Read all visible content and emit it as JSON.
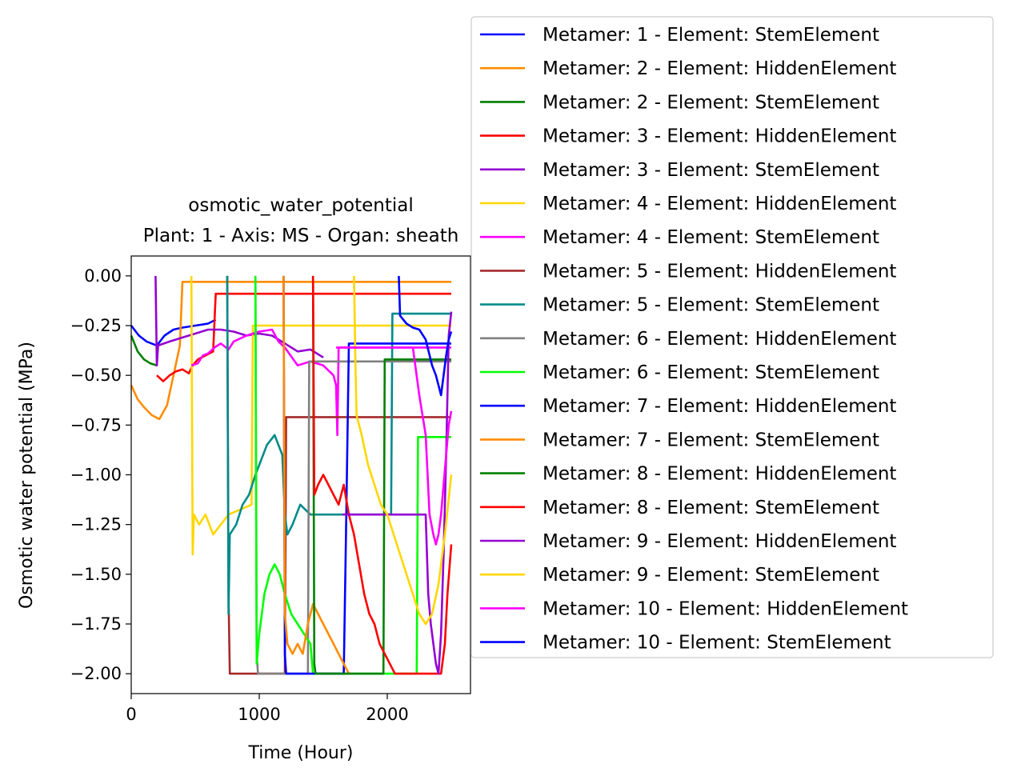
{
  "chart_data": {
    "type": "line",
    "title_line1": "osmotic_water_potential",
    "title_line2": "Plant: 1 - Axis: MS - Organ: sheath",
    "xlabel": "Time (Hour)",
    "ylabel": "Osmotic water potential (MPa)",
    "xlim": [
      0,
      2650
    ],
    "ylim": [
      -2.1,
      0.1
    ],
    "xticks": [
      {
        "value": 0,
        "label": "0"
      },
      {
        "value": 1000,
        "label": "1000"
      },
      {
        "value": 2000,
        "label": "2000"
      }
    ],
    "yticks": [
      {
        "value": 0.0,
        "label": "0.00"
      },
      {
        "value": -0.25,
        "label": "−0.25"
      },
      {
        "value": -0.5,
        "label": "−0.50"
      },
      {
        "value": -0.75,
        "label": "−0.75"
      },
      {
        "value": -1.0,
        "label": "−1.00"
      },
      {
        "value": -1.25,
        "label": "−1.25"
      },
      {
        "value": -1.5,
        "label": "−1.50"
      },
      {
        "value": -1.75,
        "label": "−1.75"
      },
      {
        "value": -2.0,
        "label": "−2.00"
      }
    ],
    "grid": false,
    "legend_position": "outside-right-top",
    "series": [
      {
        "name": "Metamer: 1 - Element: StemElement",
        "color": "#0000ff",
        "x": [
          0,
          60,
          120,
          200,
          260,
          330,
          400,
          500,
          600,
          660
        ],
        "y": [
          -0.25,
          -0.3,
          -0.33,
          -0.35,
          -0.3,
          -0.27,
          -0.26,
          -0.25,
          -0.24,
          -0.22
        ]
      },
      {
        "name": "Metamer: 2 - Element: HiddenElement",
        "color": "#ff8c00",
        "x": [
          0,
          50,
          100,
          160,
          220,
          280,
          330,
          380,
          400,
          2500
        ],
        "y": [
          -0.55,
          -0.62,
          -0.66,
          -0.7,
          -0.72,
          -0.65,
          -0.5,
          -0.35,
          -0.03,
          -0.03
        ]
      },
      {
        "name": "Metamer: 2 - Element: StemElement",
        "color": "#008000",
        "x": [
          0,
          50,
          100,
          150,
          200
        ],
        "y": [
          -0.3,
          -0.38,
          -0.42,
          -0.44,
          -0.45
        ]
      },
      {
        "name": "Metamer: 3 - Element: HiddenElement",
        "color": "#ff0000",
        "x": [
          200,
          250,
          300,
          350,
          400,
          450,
          480,
          520,
          580,
          640,
          660,
          2500
        ],
        "y": [
          -0.5,
          -0.53,
          -0.5,
          -0.48,
          -0.47,
          -0.49,
          -0.45,
          -0.42,
          -0.4,
          -0.38,
          -0.09,
          -0.09
        ]
      },
      {
        "name": "Metamer: 3 - Element: StemElement",
        "color": "#9400d3",
        "x": [
          190,
          200,
          210,
          300,
          400,
          500,
          600,
          700,
          800,
          900,
          1000,
          1100,
          1200,
          1300,
          1400,
          1500
        ],
        "y": [
          0.0,
          -0.45,
          -0.35,
          -0.33,
          -0.31,
          -0.29,
          -0.27,
          -0.27,
          -0.28,
          -0.3,
          -0.29,
          -0.3,
          -0.34,
          -0.38,
          -0.37,
          -0.41
        ]
      },
      {
        "name": "Metamer: 4 - Element: HiddenElement",
        "color": "#ffd700",
        "x": [
          470,
          480,
          490,
          530,
          580,
          640,
          700,
          760,
          940,
          950,
          2500
        ],
        "y": [
          0.0,
          -1.4,
          -1.2,
          -1.25,
          -1.2,
          -1.3,
          -1.25,
          -1.2,
          -1.15,
          -0.25,
          -0.25
        ]
      },
      {
        "name": "Metamer: 4 - Element: StemElement",
        "color": "#ff00ff",
        "x": [
          470,
          520,
          560,
          600,
          650,
          700,
          760,
          800,
          900,
          1000,
          1100,
          1150,
          1200,
          1300,
          1400,
          1500,
          1580,
          1600,
          1610,
          1620,
          2500
        ],
        "y": [
          -0.45,
          -0.44,
          -0.4,
          -0.39,
          -0.36,
          -0.34,
          -0.37,
          -0.33,
          -0.3,
          -0.28,
          -0.27,
          -0.33,
          -0.36,
          -0.45,
          -0.43,
          -0.45,
          -0.5,
          -0.55,
          -0.8,
          -0.36,
          -0.36
        ]
      },
      {
        "name": "Metamer: 5 - Element: HiddenElement",
        "color": "#a52a2a",
        "x": [
          750,
          760,
          770,
          1200,
          1210,
          2500
        ],
        "y": [
          0.0,
          -1.6,
          -2.0,
          -2.0,
          -0.71,
          -0.71
        ]
      },
      {
        "name": "Metamer: 5 - Element: StemElement",
        "color": "#008b8b",
        "x": [
          750,
          760,
          770,
          820,
          870,
          920,
          970,
          1000,
          1060,
          1120,
          1180,
          1200,
          1220,
          1260,
          1320,
          1400,
          2030,
          2040,
          2500
        ],
        "y": [
          0.0,
          -1.7,
          -1.3,
          -1.25,
          -1.15,
          -1.1,
          -1.0,
          -0.95,
          -0.85,
          -0.8,
          -0.9,
          -1.2,
          -1.3,
          -1.25,
          -1.15,
          -1.2,
          -1.2,
          -0.19,
          -0.19
        ]
      },
      {
        "name": "Metamer: 6 - Element: HiddenElement",
        "color": "#808080",
        "x": [
          970,
          980,
          990,
          1380,
          1390,
          2500
        ],
        "y": [
          0.0,
          -1.9,
          -2.0,
          -2.0,
          -0.43,
          -0.43
        ]
      },
      {
        "name": "Metamer: 6 - Element: StemElement",
        "color": "#00ff00",
        "x": [
          970,
          980,
          1000,
          1040,
          1080,
          1120,
          1160,
          1200,
          1250,
          1300,
          1350,
          1400,
          1420,
          2230,
          2240,
          2500
        ],
        "y": [
          0.0,
          -1.95,
          -1.8,
          -1.6,
          -1.5,
          -1.45,
          -1.5,
          -1.6,
          -1.7,
          -1.75,
          -1.8,
          -1.85,
          -2.0,
          -2.0,
          -0.81,
          -0.81
        ]
      },
      {
        "name": "Metamer: 7 - Element: HiddenElement",
        "color": "#0000ff",
        "x": [
          1190,
          1200,
          1210,
          1660,
          1680,
          1700,
          2500
        ],
        "y": [
          0.0,
          -1.9,
          -2.0,
          -2.0,
          -1.2,
          -0.34,
          -0.34
        ]
      },
      {
        "name": "Metamer: 7 - Element: StemElement",
        "color": "#ff8c00",
        "x": [
          1190,
          1200,
          1220,
          1260,
          1300,
          1340,
          1380,
          1420,
          1460,
          1500,
          1540,
          1580,
          1620,
          1660,
          1700,
          1720
        ],
        "y": [
          0.0,
          -1.7,
          -1.85,
          -1.9,
          -1.85,
          -1.9,
          -1.75,
          -1.65,
          -1.7,
          -1.75,
          -1.8,
          -1.85,
          -1.9,
          -1.95,
          -2.0,
          -2.0
        ]
      },
      {
        "name": "Metamer: 8 - Element: HiddenElement",
        "color": "#008000",
        "x": [
          1420,
          1430,
          1440,
          1970,
          1980,
          2500
        ],
        "y": [
          0.0,
          -1.95,
          -2.0,
          -2.0,
          -0.42,
          -0.42
        ]
      },
      {
        "name": "Metamer: 8 - Element: StemElement",
        "color": "#ff0000",
        "x": [
          1420,
          1430,
          1460,
          1500,
          1540,
          1580,
          1620,
          1660,
          1700,
          1740,
          1780,
          1820,
          1860,
          1900,
          1940,
          1980,
          2020,
          2060,
          2100,
          2200,
          2420,
          2450,
          2470,
          2500
        ],
        "y": [
          0.0,
          -1.1,
          -1.05,
          -1.0,
          -1.05,
          -1.1,
          -1.15,
          -1.05,
          -1.2,
          -1.3,
          -1.45,
          -1.6,
          -1.7,
          -1.75,
          -1.85,
          -1.9,
          -1.95,
          -2.0,
          -2.0,
          -2.0,
          -2.0,
          -1.85,
          -1.6,
          -1.35
        ]
      },
      {
        "name": "Metamer: 9 - Element: HiddenElement",
        "color": "#9400d3",
        "x": [
          1650,
          1660,
          2300,
          2320,
          2340,
          2360,
          2380,
          2400,
          2420,
          2440,
          2460,
          2480,
          2500
        ],
        "y": [
          -1.2,
          -1.2,
          -1.2,
          -1.6,
          -1.75,
          -1.85,
          -1.95,
          -2.0,
          -1.8,
          -1.4,
          -0.9,
          -0.3,
          -0.18
        ]
      },
      {
        "name": "Metamer: 9 - Element: StemElement",
        "color": "#ffd700",
        "x": [
          1740,
          1750,
          1760,
          1800,
          1850,
          1900,
          1950,
          2000,
          2050,
          2100,
          2150,
          2200,
          2250,
          2300,
          2350,
          2400,
          2450,
          2500
        ],
        "y": [
          0.0,
          -0.4,
          -0.7,
          -0.8,
          -0.95,
          -1.05,
          -1.15,
          -1.2,
          -1.3,
          -1.4,
          -1.5,
          -1.6,
          -1.7,
          -1.75,
          -1.7,
          -1.55,
          -1.3,
          -1.0
        ]
      },
      {
        "name": "Metamer: 10 - Element: HiddenElement",
        "color": "#ff00ff",
        "x": [
          1600,
          1900,
          2000,
          2100,
          2200,
          2250,
          2300,
          2330,
          2360,
          2380,
          2400,
          2420,
          2440,
          2460,
          2480,
          2500
        ],
        "y": [
          -0.36,
          -0.36,
          -0.36,
          -0.36,
          -0.36,
          -0.6,
          -0.8,
          -1.2,
          -1.3,
          -1.35,
          -1.3,
          -1.2,
          -1.05,
          -0.9,
          -0.75,
          -0.68
        ]
      },
      {
        "name": "Metamer: 10 - Element: StemElement",
        "color": "#0000ff",
        "x": [
          2090,
          2100,
          2150,
          2200,
          2250,
          2300,
          2350,
          2380,
          2400,
          2420,
          2440,
          2460,
          2480,
          2500
        ],
        "y": [
          0.0,
          -0.2,
          -0.24,
          -0.26,
          -0.27,
          -0.32,
          -0.45,
          -0.5,
          -0.55,
          -0.6,
          -0.5,
          -0.4,
          -0.32,
          -0.28
        ]
      }
    ]
  }
}
